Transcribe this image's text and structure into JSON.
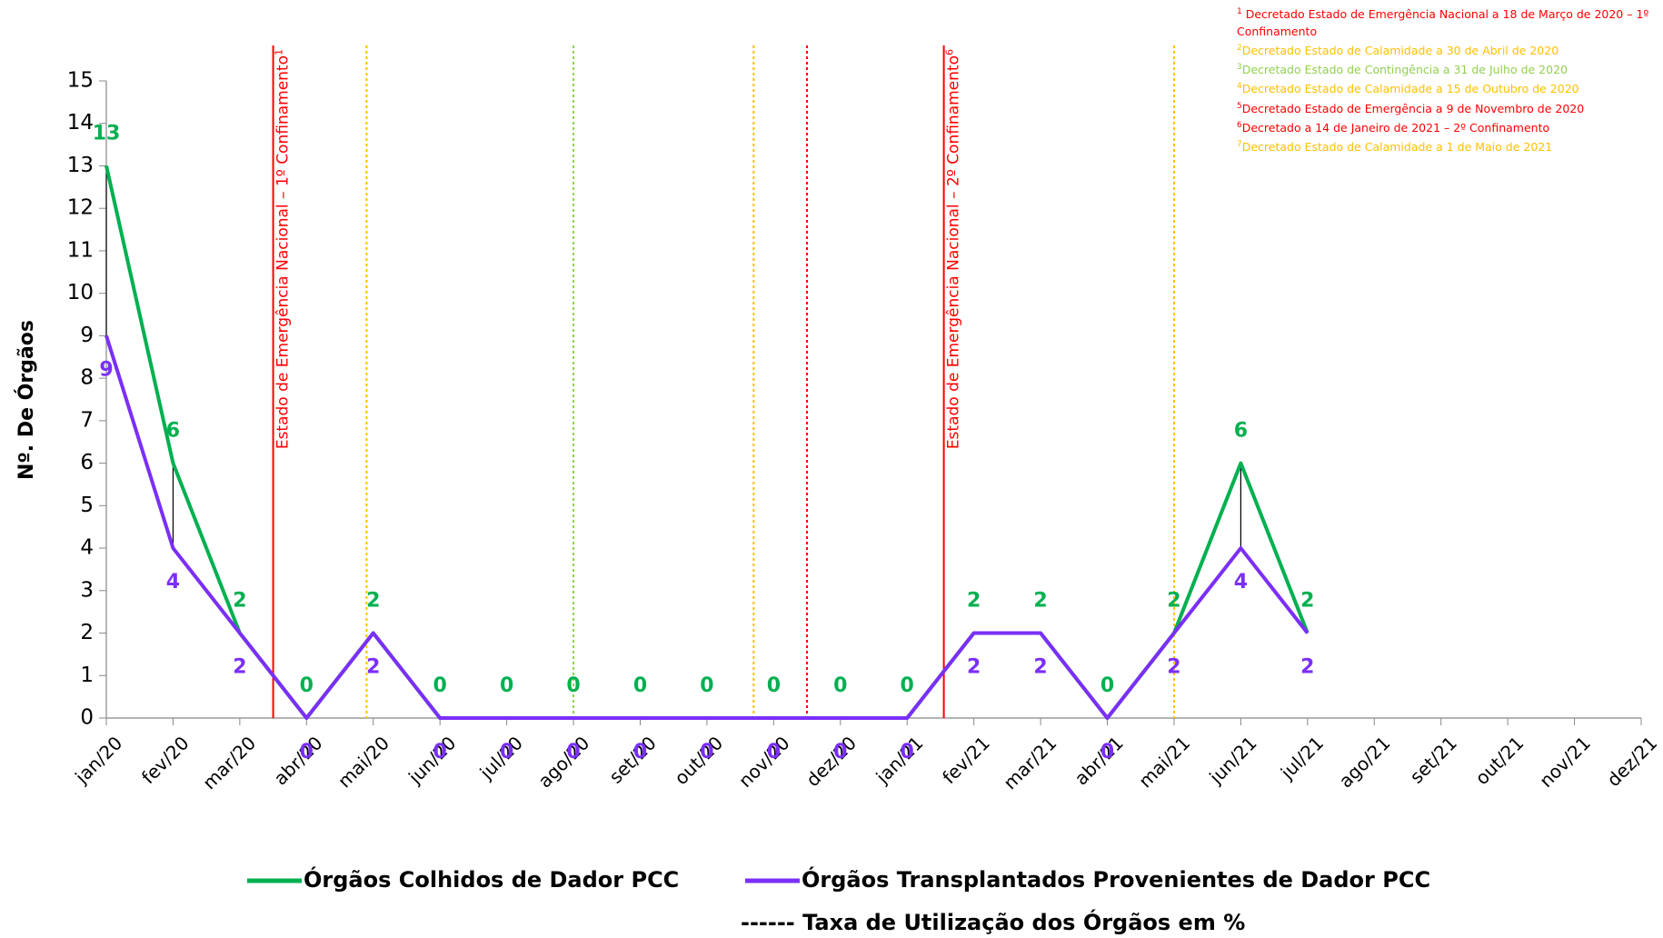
{
  "chart_data": {
    "type": "line",
    "ylabel": "Nº. De Órgãos",
    "categories": [
      "jan/20",
      "fev/20",
      "mar/20",
      "abr/20",
      "mai/20",
      "jun/20",
      "jul/20",
      "ago/20",
      "set/20",
      "out/20",
      "nov/20",
      "dez/20",
      "jan/21",
      "fev/21",
      "mar/21",
      "abr/21",
      "mai/21",
      "jun/21",
      "jul/21",
      "ago/21",
      "set/21",
      "out/21",
      "nov/21",
      "dez/21"
    ],
    "series": [
      {
        "name": "Órgãos Colhidos de Dador PCC",
        "color": "#00b050",
        "values": [
          13,
          6,
          2,
          0,
          2,
          0,
          0,
          0,
          0,
          0,
          0,
          0,
          0,
          2,
          2,
          0,
          2,
          6,
          2,
          null,
          null,
          null,
          null,
          null
        ]
      },
      {
        "name": "Órgãos Transplantados Provenientes de Dador PCC",
        "color": "#7b2ff7",
        "values": [
          9,
          4,
          2,
          0,
          2,
          0,
          0,
          0,
          0,
          0,
          0,
          0,
          0,
          2,
          2,
          0,
          2,
          4,
          2,
          null,
          null,
          null,
          null,
          null
        ]
      }
    ],
    "rate_legend": "------ Taxa de Utilização dos Órgãos em %",
    "rate_indices": [
      0,
      1,
      17
    ],
    "ylim": [
      0,
      15
    ],
    "yticks": [
      0,
      1,
      2,
      3,
      4,
      5,
      6,
      7,
      8,
      9,
      10,
      11,
      12,
      13,
      14,
      15
    ],
    "event_lines": [
      {
        "x": 2.5,
        "color": "#ff0000",
        "style": "solid",
        "label": "Estado de Emergência Nacional – 1º Confinamento",
        "sup": "1"
      },
      {
        "x": 3.9,
        "color": "#ffc000",
        "style": "dotted"
      },
      {
        "x": 7,
        "color": "#92d050",
        "style": "dotted"
      },
      {
        "x": 9.7,
        "color": "#ffc000",
        "style": "dotted"
      },
      {
        "x": 10.5,
        "color": "#ff0000",
        "style": "dotted"
      },
      {
        "x": 12.55,
        "color": "#ff0000",
        "style": "solid",
        "label": "Estado de Emergência Nacional – 2º Confinamento",
        "sup": "6"
      },
      {
        "x": 16,
        "color": "#ffc000",
        "style": "dotted"
      }
    ],
    "footnotes": [
      {
        "sup": "1",
        "text": " Decretado Estado de Emergência Nacional a 18 de Março de 2020 – 1º Confinamento",
        "color": "#ff0000"
      },
      {
        "sup": "2",
        "text": "Decretado Estado de Calamidade a 30 de Abril de 2020",
        "color": "#ffc000"
      },
      {
        "sup": "3",
        "text": "Decretado Estado de Contingência a 31 de Julho de 2020",
        "color": "#92d050"
      },
      {
        "sup": "4",
        "text": "Decretado Estado de Calamidade a 15 de Outubro de 2020",
        "color": "#ffc000"
      },
      {
        "sup": "5",
        "text": "Decretado Estado de Emergência a 9  de Novembro de 2020",
        "color": "#ff0000"
      },
      {
        "sup": "6",
        "text": "Decretado a 14 de Janeiro de 2021 – 2º Confinamento",
        "color": "#ff0000"
      },
      {
        "sup": "7",
        "text": "Decretado Estado de Calamidade a 1 de  Maio de 2021",
        "color": "#ffc000"
      }
    ]
  }
}
